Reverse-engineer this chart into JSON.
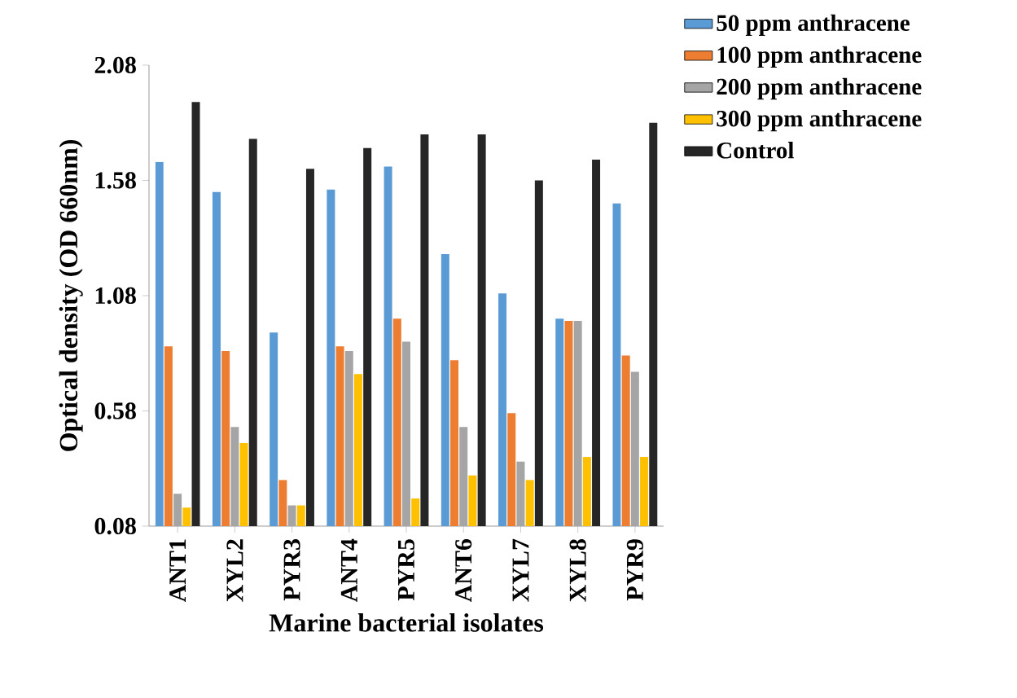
{
  "chart_data": {
    "type": "bar",
    "xlabel": "Marine bacterial isolates",
    "ylabel": "Optical density (OD 660nm)",
    "categories": [
      "ANT1",
      "XYL2",
      "PYR3",
      "ANT4",
      "PYR5",
      "ANT6",
      "XYL7",
      "XYL8",
      "PYR9"
    ],
    "series": [
      {
        "name": "50 ppm anthracene",
        "color": "#5b9bd5",
        "values": [
          1.66,
          1.53,
          0.92,
          1.54,
          1.64,
          1.26,
          1.09,
          0.98,
          1.48
        ]
      },
      {
        "name": "100 ppm anthracene",
        "color": "#ed7d31",
        "values": [
          0.86,
          0.84,
          0.28,
          0.86,
          0.98,
          0.8,
          0.57,
          0.97,
          0.82
        ]
      },
      {
        "name": "200 ppm anthracene",
        "color": "#a5a5a5",
        "values": [
          0.22,
          0.51,
          0.17,
          0.84,
          0.88,
          0.51,
          0.36,
          0.97,
          0.75
        ]
      },
      {
        "name": "300 ppm anthracene",
        "color": "#ffc000",
        "values": [
          0.16,
          0.44,
          0.17,
          0.74,
          0.2,
          0.3,
          0.28,
          0.38,
          0.38
        ]
      },
      {
        "name": "Control",
        "color": "#262626",
        "values": [
          1.92,
          1.76,
          1.63,
          1.72,
          1.78,
          1.78,
          1.58,
          1.67,
          1.83
        ]
      }
    ],
    "ylim": [
      0.08,
      2.08
    ],
    "yticks": [
      0.08,
      0.58,
      1.08,
      1.58,
      2.08
    ],
    "grid": false,
    "legend": "top right"
  }
}
